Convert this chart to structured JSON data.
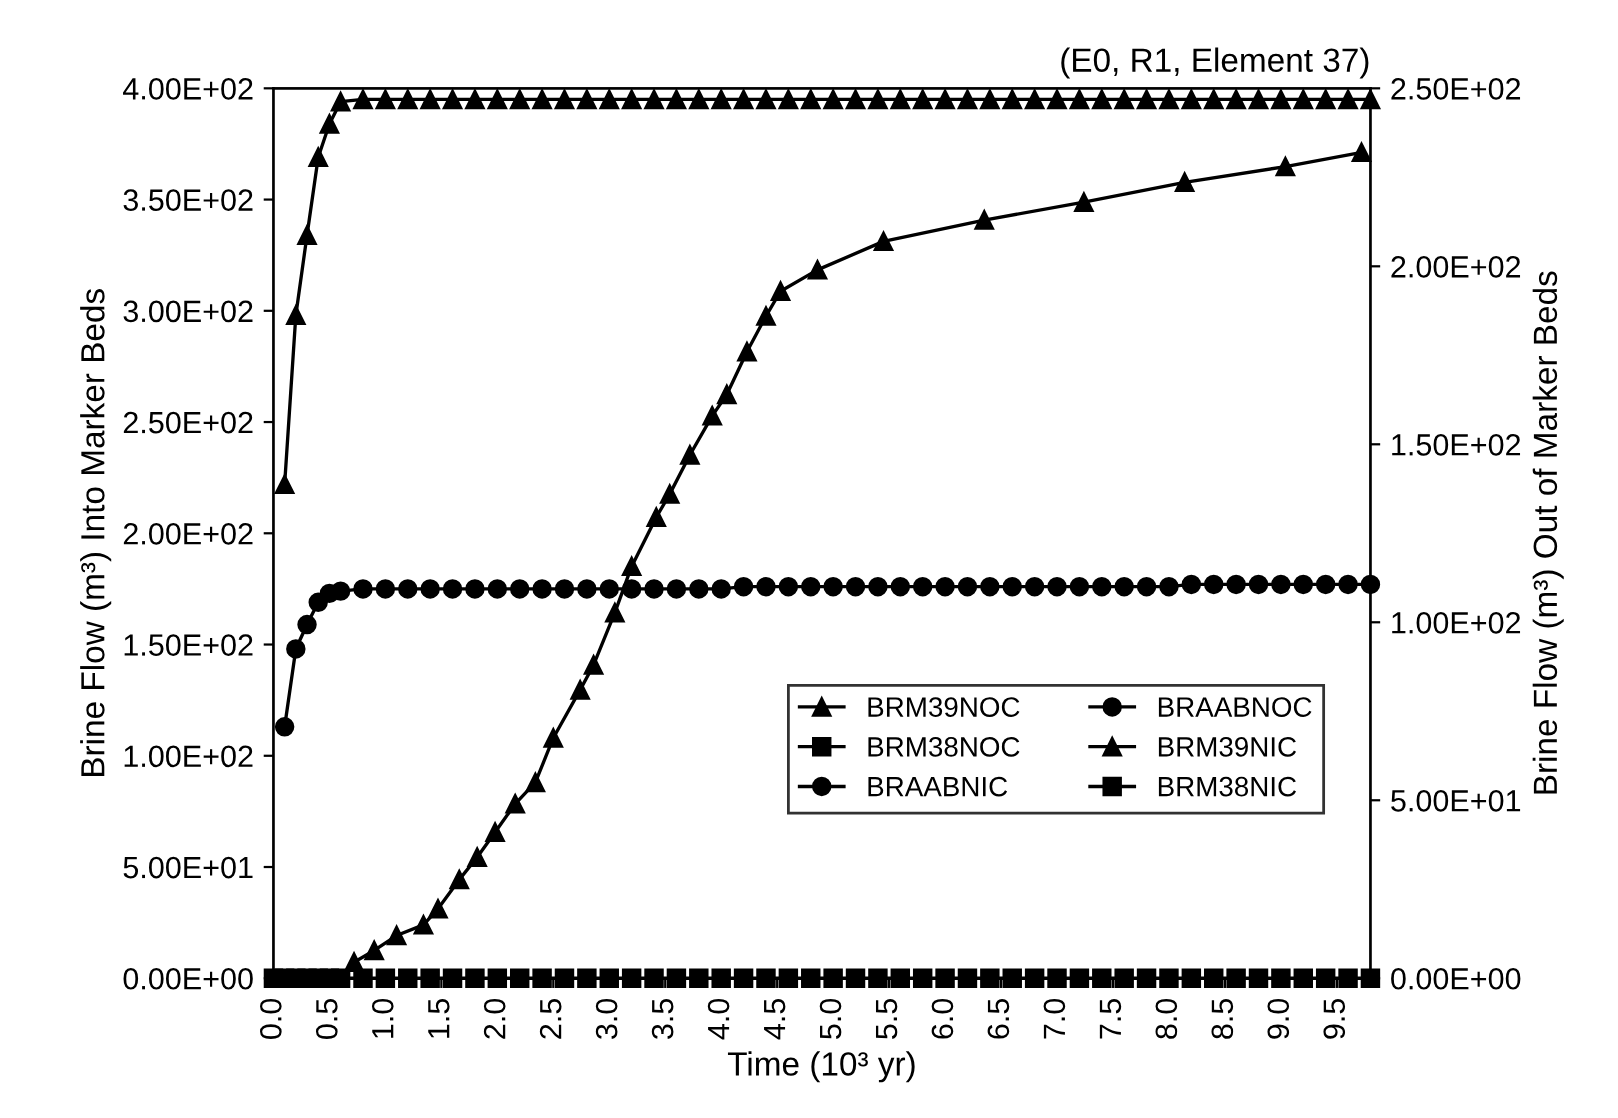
{
  "chart_data": {
    "type": "line",
    "title": "(E0, R1, Element 37)",
    "xlabel": "Time (10³ yr)",
    "ylabel": "Brine Flow (m³) Into Marker Beds",
    "y2label": "Brine Flow (m³) Out of Marker Beds",
    "x": [
      0,
      0.1,
      0.2,
      0.3,
      0.4,
      0.5,
      0.6,
      0.8,
      1.0,
      1.2,
      1.4,
      1.6,
      1.8,
      2.0,
      2.2,
      2.4,
      2.6,
      2.8,
      3.0,
      3.2,
      3.4,
      3.6,
      3.8,
      4.0,
      4.2,
      4.4,
      4.6,
      4.8,
      5.0,
      5.2,
      5.4,
      5.6,
      5.8,
      6.0,
      6.2,
      6.4,
      6.6,
      6.8,
      7.0,
      7.2,
      7.4,
      7.6,
      7.8,
      8.0,
      8.2,
      8.4,
      8.6,
      8.8,
      9.0,
      9.2,
      9.4,
      9.6,
      9.8
    ],
    "xlim": [
      0,
      9.8
    ],
    "xticks": [
      {
        "value": 0,
        "label": "0.0"
      },
      0.5,
      {
        "value": 1,
        "label": "1.0"
      },
      1.5,
      {
        "value": 2,
        "label": "2.0"
      },
      2.5,
      {
        "value": 3,
        "label": "3.0"
      },
      3.5,
      {
        "value": 4,
        "label": "4.0"
      },
      4.5,
      {
        "value": 5,
        "label": "5.0"
      },
      5.5,
      {
        "value": 6,
        "label": "6.0"
      },
      6.5,
      {
        "value": 7,
        "label": "7.0"
      },
      7.5,
      {
        "value": 8,
        "label": "8.0"
      },
      8.5,
      {
        "value": 9,
        "label": "9.0"
      },
      9.5
    ],
    "ylim": [
      0,
      400
    ],
    "yticks": [
      {
        "value": 0,
        "label": "0.00E+00"
      },
      {
        "value": 50,
        "label": "5.00E+01"
      },
      {
        "value": 100,
        "label": "1.00E+02"
      },
      {
        "value": 150,
        "label": "1.50E+02"
      },
      {
        "value": 200,
        "label": "2.00E+02"
      },
      {
        "value": 250,
        "label": "2.50E+02"
      },
      {
        "value": 300,
        "label": "3.00E+02"
      },
      {
        "value": 350,
        "label": "3.50E+02"
      },
      {
        "value": 400,
        "label": "4.00E+02"
      }
    ],
    "y2lim": [
      0,
      250
    ],
    "y2ticks": [
      {
        "value": 0,
        "label": "0.00E+00"
      },
      {
        "value": 50,
        "label": "5.00E+01"
      },
      {
        "value": 100,
        "label": "1.00E+02"
      },
      {
        "value": 150,
        "label": "1.50E+02"
      },
      {
        "value": 200,
        "label": "2.00E+02"
      },
      {
        "value": 250,
        "label": "2.50E+02"
      }
    ],
    "grid": false,
    "legend": "lower right",
    "line_style": "solid",
    "series": [
      {
        "name": "BRM39NOC",
        "color": "#000000",
        "axis": "y2",
        "marker": "triangle",
        "x": [
          0.72,
          0.9,
          1.1,
          1.34,
          1.47,
          1.66,
          1.82,
          1.98,
          2.16,
          2.34,
          2.5,
          2.74,
          2.86,
          3.05,
          3.2,
          3.42,
          3.54,
          3.72,
          3.92,
          4.05,
          4.23,
          4.4,
          4.53,
          4.86,
          5.45,
          6.35,
          7.24,
          8.14,
          9.04,
          9.72
        ],
        "values": [
          4.5,
          7.8,
          12,
          15,
          19.5,
          27.7,
          34,
          41,
          49,
          55,
          67.5,
          81,
          88,
          102.7,
          115.7,
          129.5,
          136,
          147,
          158,
          164,
          176,
          186,
          193,
          199,
          207,
          213,
          218,
          223.6,
          228,
          232
        ]
      },
      {
        "name": "BRAABNOC",
        "color": "#000000",
        "axis": "y2",
        "marker": "circle",
        "values": [
          null,
          null,
          null,
          null,
          null,
          null,
          null,
          null,
          null,
          null,
          null,
          null,
          null,
          null,
          null,
          null,
          null,
          null,
          null,
          null,
          null,
          null,
          null,
          null,
          null,
          null,
          null,
          null,
          null,
          null,
          null,
          null,
          null,
          null,
          null,
          null,
          null,
          null,
          null,
          null,
          null,
          null,
          null,
          null,
          null,
          null,
          null,
          null,
          null,
          null,
          null,
          null,
          null
        ]
      },
      {
        "name": "BRM38NOC",
        "color": "#000000",
        "axis": "y2",
        "marker": "square",
        "values": [
          null,
          null,
          null,
          null,
          null,
          null,
          null,
          null,
          null,
          null,
          null,
          null,
          null,
          null,
          null,
          null,
          null,
          null,
          null,
          null,
          null,
          null,
          null,
          null,
          null,
          null,
          null,
          null,
          null,
          null,
          null,
          null,
          null,
          null,
          null,
          null,
          null,
          null,
          null,
          null,
          null,
          null,
          null,
          null,
          null,
          null,
          null,
          null,
          null,
          null,
          null,
          null,
          null
        ]
      },
      {
        "name": "BRM39NIC",
        "color": "#000000",
        "axis": "y",
        "marker": "triangle",
        "values": [
          null,
          222,
          298,
          334,
          369,
          384,
          394,
          395,
          395,
          395,
          395,
          395,
          395,
          395,
          395,
          395,
          395,
          395,
          395,
          395,
          395,
          395,
          395,
          395,
          395,
          395,
          395,
          395,
          395,
          395,
          395,
          395,
          395,
          395,
          395,
          395,
          395,
          395,
          395,
          395,
          395,
          395,
          395,
          395,
          395,
          395,
          395,
          395,
          395,
          395,
          395,
          395,
          395
        ]
      },
      {
        "name": "BRAABNIC",
        "color": "#000000",
        "axis": "y",
        "marker": "circle",
        "values": [
          null,
          113,
          148,
          159,
          169,
          173,
          174,
          175,
          175,
          175,
          175,
          175,
          175,
          175,
          175,
          175,
          175,
          175,
          175,
          175,
          175,
          175,
          175,
          175,
          176,
          176,
          176,
          176,
          176,
          176,
          176,
          176,
          176,
          176,
          176,
          176,
          176,
          176,
          176,
          176,
          176,
          176,
          176,
          176,
          177,
          177,
          177,
          177,
          177,
          177,
          177,
          177,
          177
        ]
      },
      {
        "name": "BRM38NIC",
        "color": "#000000",
        "axis": "y",
        "marker": "square",
        "values": [
          0,
          0,
          0,
          0,
          0,
          0,
          0,
          0,
          0,
          0,
          0,
          0,
          0,
          0,
          0,
          0,
          0,
          0,
          0,
          0,
          0,
          0,
          0,
          0,
          0,
          0,
          0,
          0,
          0,
          0,
          0,
          0,
          0,
          0,
          0,
          0,
          0,
          0,
          0,
          0,
          0,
          0,
          0,
          0,
          0,
          0,
          0,
          0,
          0,
          0,
          0,
          0,
          0
        ]
      }
    ]
  }
}
